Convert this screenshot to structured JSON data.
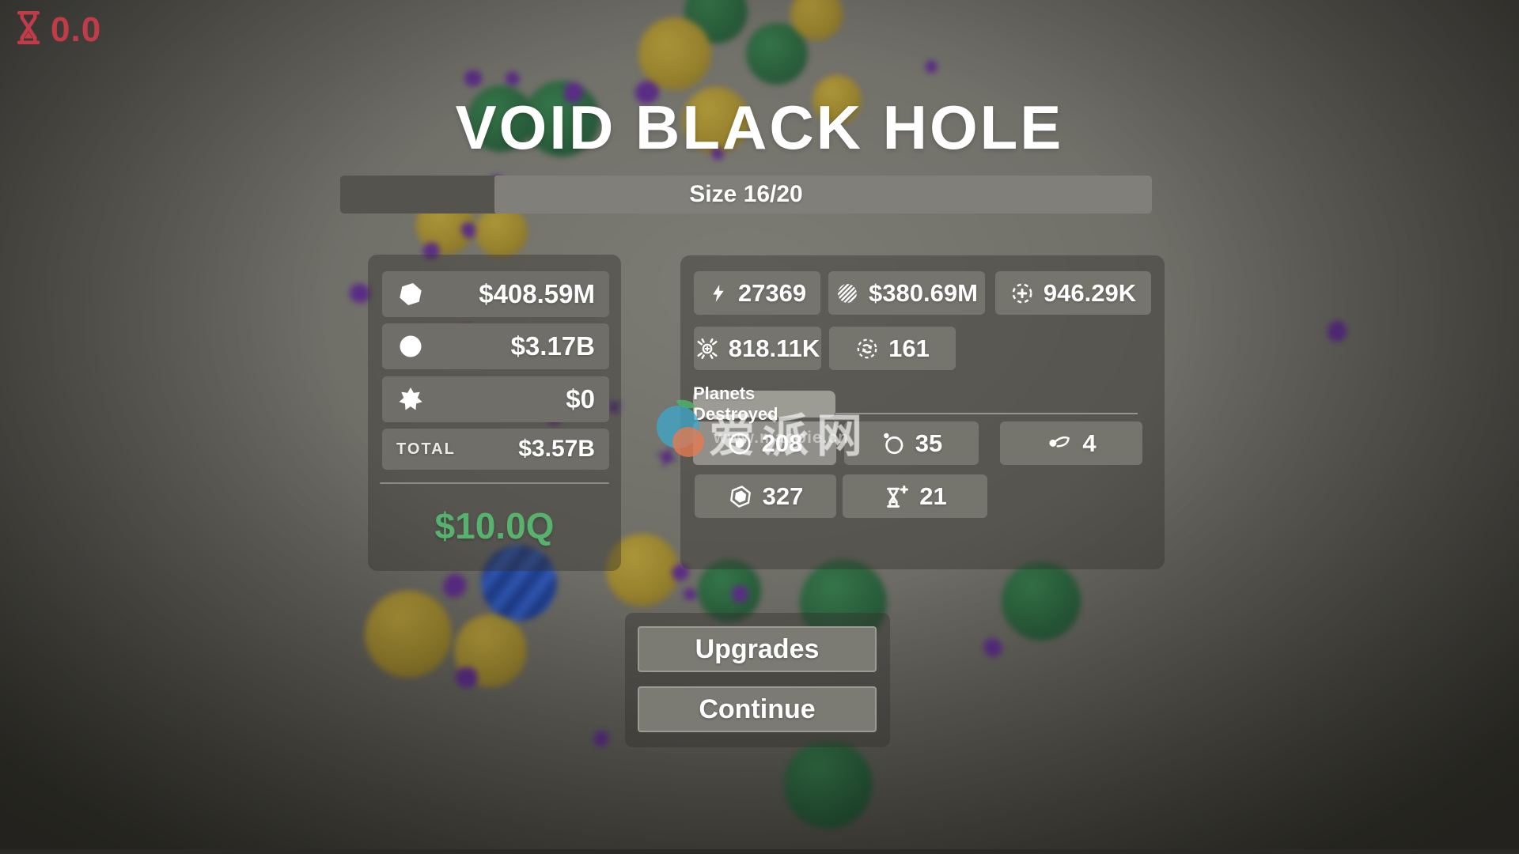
{
  "timer": {
    "value": "0.0"
  },
  "header": {
    "title": "VOID BLACK HOLE"
  },
  "size_bar": {
    "label": "Size 16/20",
    "current": 16,
    "max": 20
  },
  "wallet": {
    "rows": [
      {
        "icon": "hexagon-gem-icon",
        "value": "$408.59M"
      },
      {
        "icon": "moon-circle-icon",
        "value": "$3.17B"
      },
      {
        "icon": "burst-star-icon",
        "value": "$0"
      }
    ],
    "total_label": "TOTAL",
    "total_value": "$3.57B",
    "goal_value": "$10.0Q"
  },
  "stats": {
    "row1": [
      {
        "icon": "lightning-icon",
        "value": "27369"
      },
      {
        "icon": "hatched-sphere-icon",
        "value": "$380.69M"
      },
      {
        "icon": "capture-plus-icon",
        "value": "946.29K"
      }
    ],
    "row2": [
      {
        "icon": "implosion-icon",
        "value": "818.11K"
      },
      {
        "icon": "orbit-refresh-icon",
        "value": "161"
      }
    ],
    "planets_destroyed": {
      "tooltip": "Planets Destroyed",
      "row1": [
        {
          "icon": "fireball-planet-icon",
          "value": "208",
          "highlighted": true
        },
        {
          "icon": "planet-moon-icon",
          "value": "35"
        },
        {
          "icon": "comet-icon",
          "value": "4"
        }
      ],
      "row2": [
        {
          "icon": "hex-core-icon",
          "value": "327"
        },
        {
          "icon": "hourglass-plus-icon",
          "value": "21"
        }
      ]
    }
  },
  "actions": {
    "upgrades": "Upgrades",
    "continue": "Continue"
  },
  "watermark": {
    "site_name": "爱派网",
    "site_url": "www.maopie.cn"
  },
  "colors": {
    "timer_red": "#c23b49",
    "goal_green": "#57b26e",
    "chip_gray": "#75746d",
    "highlight_gray": "#908f89"
  }
}
